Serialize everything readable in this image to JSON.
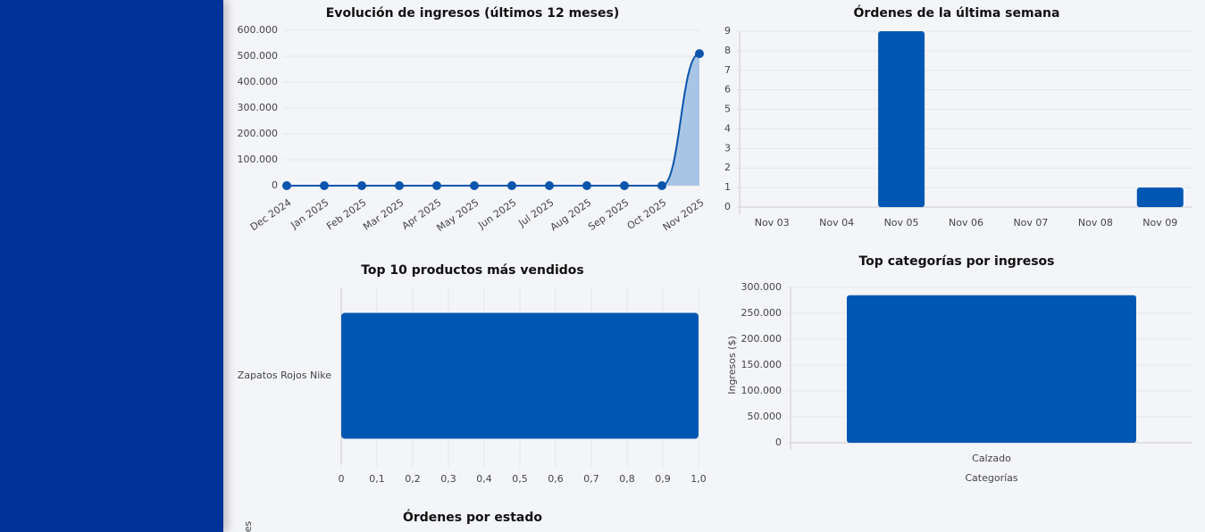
{
  "chart_data": [
    {
      "type": "line",
      "title": "Evolución de ingresos (últimos 12 meses)",
      "categories": [
        "Dec 2024",
        "Jan 2025",
        "Feb 2025",
        "Mar 2025",
        "Apr 2025",
        "May 2025",
        "Jun 2025",
        "Jul 2025",
        "Aug 2025",
        "Sep 2025",
        "Oct 2025",
        "Nov 2025"
      ],
      "values": [
        0,
        0,
        0,
        0,
        0,
        0,
        0,
        0,
        0,
        0,
        0,
        510000
      ],
      "color": "#0b55ad",
      "area_color": "#a9c5e6",
      "ylim": [
        0,
        600000
      ],
      "yticks": [
        0,
        {
          "value": 100000,
          "label": "100.000"
        },
        {
          "value": 200000,
          "label": "200.000"
        },
        {
          "value": 300000,
          "label": "300.000"
        },
        {
          "value": 400000,
          "label": "400.000"
        },
        {
          "value": 500000,
          "label": "500.000"
        },
        {
          "value": 600000,
          "label": "600.000"
        }
      ],
      "grid": true
    },
    {
      "type": "bar",
      "title": "Órdenes de la última semana",
      "categories": [
        "Nov 03",
        "Nov 04",
        "Nov 05",
        "Nov 06",
        "Nov 07",
        "Nov 08",
        "Nov 09"
      ],
      "values": [
        0,
        0,
        9,
        0,
        0,
        0,
        1
      ],
      "color": "#0057b3",
      "ylim": [
        0,
        9
      ],
      "yticks": [
        0,
        1,
        2,
        3,
        4,
        5,
        6,
        7,
        8,
        9
      ],
      "grid": true
    },
    {
      "type": "hbar",
      "title": "Top 10 productos más vendidos",
      "categories": [
        "Zapatos Rojos Nike"
      ],
      "values": [
        1
      ],
      "color": "#0057b3",
      "xlim": [
        0,
        1
      ],
      "xticks": [
        0,
        {
          "value": 0.1,
          "label": "0,1"
        },
        {
          "value": 0.2,
          "label": "0,2"
        },
        {
          "value": 0.3,
          "label": "0,3"
        },
        {
          "value": 0.4,
          "label": "0,4"
        },
        {
          "value": 0.5,
          "label": "0,5"
        },
        {
          "value": 0.6,
          "label": "0,6"
        },
        {
          "value": 0.7,
          "label": "0,7"
        },
        {
          "value": 0.8,
          "label": "0,8"
        },
        {
          "value": 0.9,
          "label": "0,9"
        },
        {
          "value": 1,
          "label": "1,0"
        }
      ],
      "grid": true
    },
    {
      "type": "bar",
      "title": "Top categorías por ingresos",
      "categories": [
        "Calzado"
      ],
      "values": [
        285000
      ],
      "color": "#0057b3",
      "xlabel": "Categorías",
      "ylabel": "Ingresos ($)",
      "ylim": [
        0,
        300000
      ],
      "yticks": [
        0,
        {
          "value": 50000,
          "label": "50.000"
        },
        {
          "value": 100000,
          "label": "100.000"
        },
        {
          "value": 150000,
          "label": "150.000"
        },
        {
          "value": 200000,
          "label": "200.000"
        },
        {
          "value": 250000,
          "label": "250.000"
        },
        {
          "value": 300000,
          "label": "300.000"
        }
      ],
      "grid": true
    },
    {
      "title": "Órdenes por estado",
      "ylabel": "es"
    }
  ]
}
